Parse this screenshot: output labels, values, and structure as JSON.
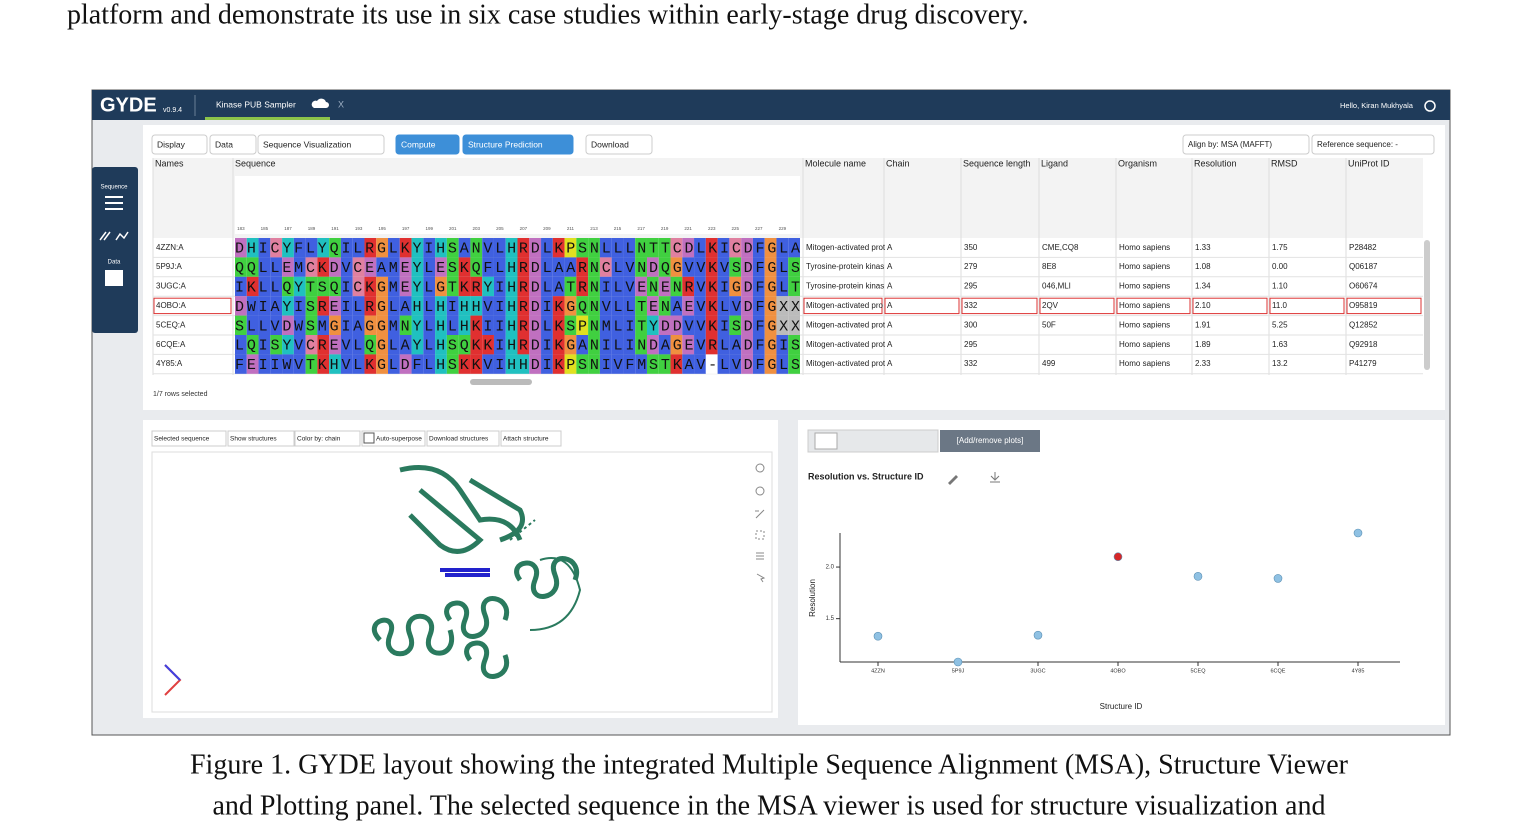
{
  "paper": {
    "top_text": "platform and demonstrate its use in six case studies within early-stage drug discovery.",
    "caption": [
      "Figure 1. GYDE layout showing the integrated Multiple Sequence Alignment (MSA), Structure Viewer",
      "and Plotting panel. The selected sequence in the MSA viewer is used for structure visualization and"
    ]
  },
  "app": {
    "logo": "GYDE",
    "version": "v0.9.4",
    "tab": "Kinase PUB Sampler",
    "tab_close": "X",
    "greeting": "Hello, Kiran Mukhyala",
    "sidebar": [
      "Sequence",
      "Data"
    ],
    "toolbar": [
      "Display",
      "Data",
      "Sequence Visualization",
      "Compute",
      "Structure Prediction",
      "Download"
    ],
    "toolbar_right": [
      "Align by: MSA (MAFFT)",
      "Reference sequence: -"
    ],
    "logo_positions": [
      183,
      185,
      187,
      189,
      191,
      193,
      195,
      197,
      199,
      201,
      203,
      205,
      207,
      209,
      211,
      213,
      215,
      217,
      219,
      221,
      223,
      225,
      227,
      229
    ],
    "table": {
      "columns": [
        "Names",
        "Sequence",
        "Molecule name",
        "Chain",
        "Sequence length",
        "Ligand",
        "Organism",
        "Resolution",
        "RMSD",
        "UniProt ID"
      ],
      "selected_row": 3,
      "rows": [
        [
          "4ZZN:A",
          "DHICYFLYQILRGLKYIHSANVLHRDLKPSNLLLNTTCDLKICDFGLA",
          "Mitogen-activated prot",
          "A",
          "350",
          "CME,CQ8",
          "Homo sapiens",
          "1.33",
          "1.75",
          "P28482"
        ],
        [
          "5P9J:A",
          "QQLLEMCKDVCEAMEYLESKQFLHRDLAARNCLVNDQGVVKVSDFGLS",
          "Tyrosine-protein kinas",
          "A",
          "279",
          "8E8",
          "Homo sapiens",
          "1.08",
          "0.00",
          "Q06187"
        ],
        [
          "3UGC:A",
          "IKLLQYTSQICKGMEYLGTKRYIHRDLATRNILVENENRVKIGDFGLT",
          "Tyrosine-protein kinas",
          "A",
          "295",
          "046,MLI",
          "Homo sapiens",
          "1.34",
          "1.10",
          "O60674"
        ],
        [
          "4OBO:A",
          "DWIAYISREILRGLAHLHIHHVIHRDIKGQNVLLTENAEVKLVDFGXX",
          "Mitogen-activated pro",
          "A",
          "332",
          "2QV",
          "Homo sapiens",
          "2.10",
          "11.0",
          "O95819"
        ],
        [
          "5CEQ:A",
          "SLLVDWSMGIAGGMNYLHLHKIIHRDLKSPNMLITYDDVVKISDFGXX",
          "Mitogen-activated prot",
          "A",
          "300",
          "50F",
          "Homo sapiens",
          "1.91",
          "5.25",
          "Q12852"
        ],
        [
          "6CQE:A",
          "LQISYVCREVLQGLAYLHSQKKIHRDIKGANILINDAGEVRLADFGIS",
          "Mitogen-activated prot",
          "A",
          "295",
          null,
          "Homo sapiens",
          "1.89",
          "1.63",
          "Q92918"
        ],
        [
          "4Y85:A",
          "FEIIWVTKHVLKGLDFLHSKKVIHHDIKPSNIVFMSTKAV-LVDFGLS",
          "Mitogen-activated prot",
          "A",
          "332",
          "499",
          "Homo sapiens",
          "2.33",
          "13.2",
          "P41279"
        ]
      ]
    },
    "rows_selected": "1/7 rows selected",
    "structure_toolbar": [
      "Selected sequence",
      "Show structures",
      "Color by: chain",
      "Auto-superpose",
      "Download structures",
      "Attach structure"
    ],
    "plot_button": "[Add/remove plots]"
  },
  "chart_data": {
    "type": "scatter",
    "title": "Resolution vs. Structure ID",
    "x_label": "Structure ID",
    "y_label": "Resolution",
    "categories": [
      "4ZZN",
      "5P9J",
      "3UGC",
      "4OBO",
      "5CEQ",
      "6CQE",
      "4Y85"
    ],
    "values": [
      1.33,
      1.08,
      1.34,
      2.1,
      1.91,
      1.89,
      2.33
    ],
    "point_colors": [
      "#8fc1e3",
      "#8fc1e3",
      "#8fc1e3",
      "#d62728",
      "#8fc1e3",
      "#8fc1e3",
      "#8fc1e3"
    ],
    "ylim": [
      1.08,
      2.33
    ],
    "yticks": [
      1.5,
      {
        "value": 2,
        "label": "2.0"
      }
    ]
  }
}
